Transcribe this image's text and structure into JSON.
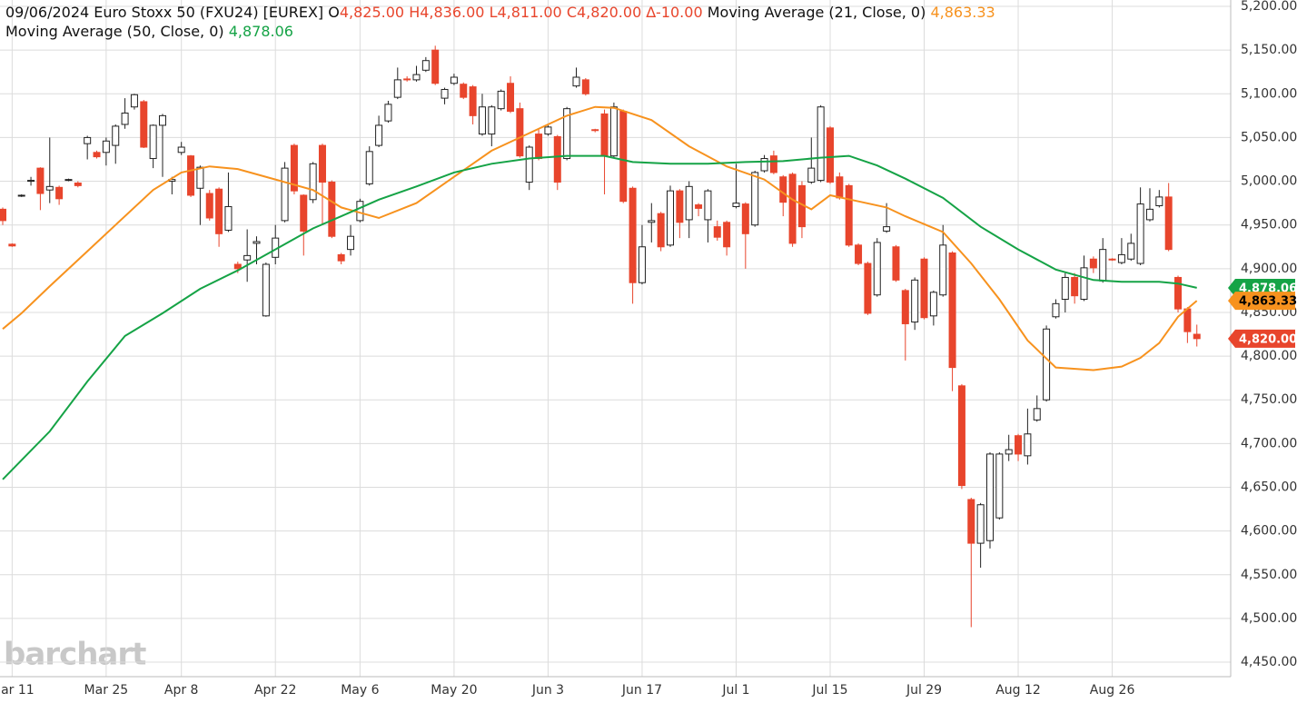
{
  "chart_data": {
    "type": "candlestick",
    "header": {
      "title": "09/06/2024 Euro Stoxx 50 (FXU24) [EUREX]",
      "open_prefix": "O",
      "open": "4,825.00",
      "high": "H4,836.00",
      "low": "L4,811.00",
      "close": "C4,820.00",
      "change": "∆-10.00"
    },
    "watermark": "barchart",
    "candles": {
      "up_color": "#ffffff",
      "down_color": "#e8452c",
      "last_label": "4,820.00",
      "open": [
        4968,
        4928,
        4983,
        5000,
        5015,
        4990,
        4993,
        5001,
        4998,
        5043,
        5033,
        5033,
        5041,
        5065,
        5085,
        5091,
        5026,
        5064,
        5000,
        5033,
        5029,
        4992,
        4986,
        4991,
        4944,
        4905,
        4910,
        4929,
        4846,
        4913,
        4955,
        5041,
        4984,
        4979,
        5041,
        4999,
        4916,
        4922,
        4955,
        4997,
        5041,
        5069,
        5096,
        5117,
        5116,
        5127,
        5150,
        5095,
        5112,
        5111,
        5108,
        5054,
        5054,
        5083,
        5112,
        5083,
        4999,
        5054,
        5054,
        5051,
        5026,
        5109,
        5116,
        5059,
        5077,
        5029,
        5080,
        4992,
        4884,
        4953,
        4963,
        4927,
        4989,
        4956,
        4973,
        4956,
        4948,
        4953,
        4971,
        4974,
        4950,
        5012,
        5029,
        5005,
        5008,
        4995,
        4999,
        5001,
        5061,
        5005,
        4995,
        4927,
        4906,
        4870,
        4943,
        4925,
        4875,
        4839,
        4911,
        4846,
        4870,
        4918,
        4766,
        4636,
        4586,
        4589,
        4615,
        4688,
        4709,
        4686,
        4727,
        4750,
        4845,
        4865,
        4890,
        4865,
        4911,
        4886,
        4911,
        4907,
        4911,
        4906,
        4956,
        4972,
        4982,
        4890,
        4854,
        4825
      ],
      "high": [
        4970,
        4929,
        4985,
        5005,
        5016,
        5050,
        4995,
        5003,
        5000,
        5052,
        5035,
        5050,
        5065,
        5095,
        5100,
        5093,
        5065,
        5077,
        5005,
        5045,
        5030,
        5018,
        4990,
        4993,
        5010,
        4908,
        4945,
        4937,
        4907,
        4950,
        5022,
        5043,
        4985,
        5022,
        5043,
        5001,
        4918,
        4950,
        4980,
        5040,
        5075,
        5092,
        5130,
        5120,
        5132,
        5142,
        5155,
        5107,
        5123,
        5113,
        5110,
        5100,
        5087,
        5105,
        5120,
        5090,
        5041,
        5060,
        5064,
        5053,
        5085,
        5130,
        5118,
        5060,
        5082,
        5090,
        5082,
        4994,
        4950,
        4975,
        4965,
        4995,
        4991,
        5000,
        4975,
        4991,
        4955,
        4955,
        5020,
        4976,
        5012,
        5030,
        5035,
        5007,
        5010,
        5000,
        5050,
        5087,
        5063,
        5010,
        4997,
        4929,
        4908,
        4935,
        4975,
        4927,
        4877,
        4890,
        4913,
        4875,
        4950,
        4920,
        4768,
        4638,
        4632,
        4690,
        4690,
        4710,
        4711,
        4740,
        4755,
        4835,
        4865,
        4895,
        4895,
        4915,
        4914,
        4935,
        4912,
        4935,
        4940,
        4993,
        4992,
        4990,
        4998,
        4892,
        4856,
        4836
      ],
      "low": [
        4950,
        4925,
        4982,
        4995,
        4967,
        4975,
        4973,
        5000,
        4993,
        5025,
        5026,
        5018,
        5020,
        5060,
        5082,
        5038,
        5015,
        5005,
        4985,
        5030,
        4982,
        4950,
        4955,
        4925,
        4942,
        4895,
        4885,
        4905,
        4845,
        4905,
        4953,
        4985,
        4915,
        4975,
        4950,
        4935,
        4905,
        4915,
        4953,
        4995,
        5039,
        5067,
        5094,
        5114,
        5114,
        5125,
        5110,
        5088,
        5110,
        5094,
        5065,
        5052,
        5040,
        5081,
        5078,
        5027,
        4990,
        5024,
        5052,
        4990,
        5024,
        5107,
        5098,
        5056,
        4985,
        5027,
        4975,
        4860,
        4882,
        4930,
        4920,
        4925,
        4935,
        4935,
        4960,
        4930,
        4932,
        4915,
        4969,
        4900,
        4948,
        5010,
        5008,
        4960,
        4925,
        4935,
        4997,
        4999,
        4997,
        4979,
        4925,
        4904,
        4847,
        4868,
        4941,
        4885,
        4795,
        4830,
        4842,
        4835,
        4868,
        4760,
        4648,
        4490,
        4558,
        4580,
        4613,
        4680,
        4680,
        4676,
        4725,
        4748,
        4843,
        4850,
        4860,
        4863,
        4895,
        4884,
        4909,
        4905,
        4909,
        4904,
        4954,
        4970,
        4920,
        4850,
        4815,
        4811
      ],
      "close": [
        4955,
        4926,
        4984,
        5001,
        4986,
        4994,
        4980,
        5002,
        4995,
        5050,
        5028,
        5046,
        5063,
        5078,
        5099,
        5039,
        5064,
        5075,
        5002,
        5039,
        4984,
        5016,
        4958,
        4940,
        4971,
        4900,
        4915,
        4931,
        4905,
        4935,
        5015,
        4989,
        4943,
        5020,
        4999,
        4937,
        4909,
        4937,
        4977,
        5034,
        5064,
        5088,
        5116,
        5116,
        5122,
        5138,
        5112,
        5105,
        5119,
        5096,
        5075,
        5085,
        5085,
        5103,
        5080,
        5029,
        5039,
        5026,
        5062,
        4999,
        5083,
        5119,
        5100,
        5058,
        5029,
        5085,
        4977,
        4884,
        4925,
        4955,
        4925,
        4989,
        4953,
        4994,
        4969,
        4989,
        4936,
        4925,
        4975,
        4940,
        5010,
        5026,
        5010,
        4976,
        4929,
        4948,
        5015,
        5085,
        4999,
        4981,
        4927,
        4906,
        4849,
        4930,
        4948,
        4887,
        4837,
        4887,
        4844,
        4873,
        4927,
        4787,
        4652,
        4586,
        4630,
        4688,
        4688,
        4693,
        4688,
        4711,
        4740,
        4831,
        4860,
        4890,
        4869,
        4901,
        4901,
        4922,
        4910,
        4916,
        4929,
        4974,
        4968,
        4982,
        4922,
        4854,
        4828,
        4820
      ]
    },
    "series": [
      {
        "name": "Moving Average  (21, Close, 0)",
        "color": "#f7921e",
        "last_label": "4,863.33",
        "x": [
          0,
          2,
          5,
          9,
          12,
          16,
          19,
          22,
          25,
          29,
          33,
          36,
          40,
          44,
          48,
          52,
          56,
          60,
          63,
          65,
          69,
          73,
          77,
          81,
          84,
          86,
          88,
          91,
          94,
          96,
          100,
          103,
          106,
          109,
          112,
          116,
          119,
          121,
          123,
          125,
          127
        ],
        "values": [
          4831,
          4849,
          4880,
          4920,
          4950,
          4990,
          5010,
          5017,
          5014,
          5002,
          4990,
          4970,
          4958,
          4975,
          5005,
          5035,
          5055,
          5075,
          5085,
          5084,
          5070,
          5040,
          5017,
          5002,
          4979,
          4968,
          4984,
          4977,
          4970,
          4960,
          4942,
          4906,
          4865,
          4818,
          4787,
          4784,
          4788,
          4798,
          4815,
          4845,
          4863.33
        ]
      },
      {
        "name": "Moving Average  (50, Close, 0)",
        "color": "#15a346",
        "last_label": "4,878.06",
        "x": [
          0,
          5,
          9,
          13,
          17,
          21,
          25,
          29,
          33,
          36,
          40,
          44,
          48,
          52,
          56,
          60,
          64,
          67,
          71,
          75,
          79,
          83,
          87,
          90,
          93,
          96,
          100,
          104,
          108,
          112,
          116,
          119,
          123,
          125,
          127
        ],
        "values": [
          4659,
          4714,
          4771,
          4823,
          4849,
          4877,
          4898,
          4922,
          4946,
          4960,
          4979,
          4994,
          5010,
          5020,
          5026,
          5029,
          5029,
          5022,
          5020,
          5020,
          5022,
          5023,
          5027,
          5029,
          5018,
          5003,
          4981,
          4948,
          4922,
          4899,
          4887,
          4885,
          4885,
          4883,
          4878.06
        ]
      }
    ],
    "xlim": [
      -0.29,
      130.6
    ],
    "ylim": [
      4433.4,
      5207.3
    ],
    "grid": true,
    "xticks": [
      {
        "value": 1,
        "label": "Mar 11"
      },
      {
        "value": 11,
        "label": "Mar 25"
      },
      {
        "value": 19,
        "label": "Apr 8"
      },
      {
        "value": 29,
        "label": "Apr 22"
      },
      {
        "value": 38,
        "label": "May 6"
      },
      {
        "value": 48,
        "label": "May 20"
      },
      {
        "value": 58,
        "label": "Jun 3"
      },
      {
        "value": 68,
        "label": "Jun 17"
      },
      {
        "value": 78,
        "label": "Jul 1"
      },
      {
        "value": 88,
        "label": "Jul 15"
      },
      {
        "value": 98,
        "label": "Jul 29"
      },
      {
        "value": 108,
        "label": "Aug 12"
      },
      {
        "value": 118,
        "label": "Aug 26"
      }
    ],
    "yticks": [
      {
        "value": 4450,
        "label": "4,450.00"
      },
      {
        "value": 4500,
        "label": "4,500.00"
      },
      {
        "value": 4550,
        "label": "4,550.00"
      },
      {
        "value": 4600,
        "label": "4,600.00"
      },
      {
        "value": 4650,
        "label": "4,650.00"
      },
      {
        "value": 4700,
        "label": "4,700.00"
      },
      {
        "value": 4750,
        "label": "4,750.00"
      },
      {
        "value": 4800,
        "label": "4,800.00"
      },
      {
        "value": 4850,
        "label": "4,850.00"
      },
      {
        "value": 4900,
        "label": "4,900.00"
      },
      {
        "value": 4950,
        "label": "4,950.00"
      },
      {
        "value": 5000,
        "label": "5,000.00"
      },
      {
        "value": 5050,
        "label": "5,050.00"
      },
      {
        "value": 5100,
        "label": "5,100.00"
      },
      {
        "value": 5150,
        "label": "5,150.00"
      },
      {
        "value": 5200,
        "label": "5,200.00"
      }
    ]
  }
}
